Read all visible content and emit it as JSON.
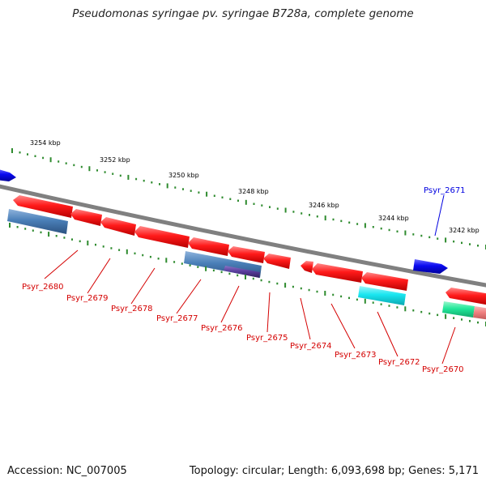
{
  "title": "Pseudomonas syringae pv. syringae B728a, complete genome",
  "footer": {
    "accession": "Accession: NC_007005",
    "summary": "Topology: circular; Length: 6,093,698 bp; Genes: 5,171"
  },
  "ticks": [
    "3254 kbp",
    "3252 kbp",
    "3250 kbp",
    "3248 kbp",
    "3246 kbp",
    "3244 kbp",
    "3242 kbp"
  ],
  "gene_labels": {
    "Psyr_2680": "Psyr_2680",
    "Psyr_2679": "Psyr_2679",
    "Psyr_2678": "Psyr_2678",
    "Psyr_2677": "Psyr_2677",
    "Psyr_2676": "Psyr_2676",
    "Psyr_2675": "Psyr_2675",
    "Psyr_2674": "Psyr_2674",
    "Psyr_2673": "Psyr_2673",
    "Psyr_2672": "Psyr_2672",
    "Psyr_2671": "Psyr_2671",
    "Psyr_2670": "Psyr_2670"
  },
  "colors": {
    "backbone": "#808080",
    "gene_red": "#ff1a1a",
    "gene_blue": "#0a0af0",
    "steel_blue": "#4a7fb8",
    "purple": "#5b3f9e",
    "cyan": "#19e6f0",
    "green": "#22e89a",
    "salmon": "#f08080",
    "tick": "#2e8b2e",
    "label_red": "#d40000",
    "label_blue": "#0000e0"
  }
}
